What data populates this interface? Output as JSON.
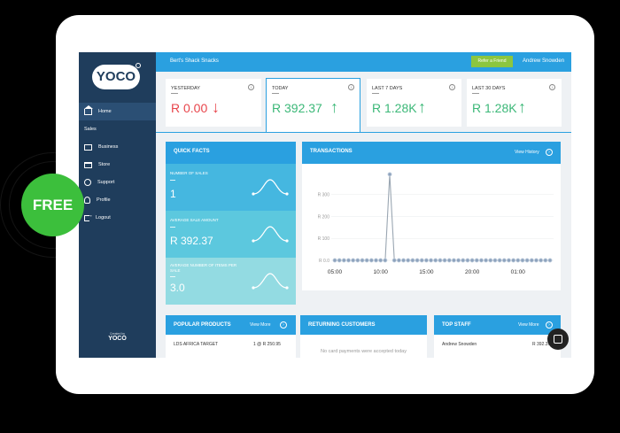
{
  "brand": {
    "logo_text": "YOCO",
    "footer_small": "Created by",
    "footer_brand": "YOCO"
  },
  "badge": {
    "label": "FREE"
  },
  "nav": [
    {
      "label": "Home",
      "icon": "home-icon",
      "active": true
    },
    {
      "label": "Sales",
      "icon": "card-icon"
    },
    {
      "label": "Business",
      "icon": "briefcase-icon"
    },
    {
      "label": "Store",
      "icon": "store-icon"
    },
    {
      "label": "Support",
      "icon": "support-icon"
    },
    {
      "label": "Profile",
      "icon": "profile-icon"
    },
    {
      "label": "Logout",
      "icon": "logout-icon"
    }
  ],
  "topbar": {
    "shop_name": "Bert's Shack Snacks",
    "refer_label": "Refer a Friend",
    "user_name": "Andrew Snowden"
  },
  "stats": [
    {
      "label": "YESTERDAY",
      "value": "R 0.00",
      "trend": "down",
      "arrow": "↓",
      "color": "#e8454b"
    },
    {
      "label": "TODAY",
      "value": "R 392.37",
      "trend": "up",
      "arrow": "↑",
      "color": "#3cb878"
    },
    {
      "label": "LAST 7 DAYS",
      "value": "R 1.28K",
      "trend": "up",
      "arrow": "↑",
      "color": "#3cb878"
    },
    {
      "label": "LAST 30 DAYS",
      "value": "R 1.28K",
      "trend": "up",
      "arrow": "↑",
      "color": "#3cb878"
    }
  ],
  "quick_facts": {
    "title": "QUICK FACTS",
    "items": [
      {
        "label": "NUMBER OF SALES",
        "value": "1",
        "bg": "#45b7e0"
      },
      {
        "label": "AVERAGE SALE AMOUNT",
        "value": "R 392.37",
        "bg": "#5cc8de"
      },
      {
        "label": "AVERAGE NUMBER OF ITEMS PER SALE",
        "value": "3.0",
        "bg": "#93dbe2"
      }
    ]
  },
  "transactions": {
    "title": "TRANSACTIONS",
    "view_label": "View History"
  },
  "chart_data": {
    "type": "line",
    "x": [
      "05:00",
      "05:30",
      "06:00",
      "06:30",
      "07:00",
      "07:30",
      "08:00",
      "08:30",
      "09:00",
      "09:30",
      "10:00",
      "10:30",
      "11:00",
      "11:30",
      "12:00",
      "12:30",
      "13:00",
      "13:30",
      "14:00",
      "14:30",
      "15:00",
      "15:30",
      "16:00",
      "16:30",
      "17:00",
      "17:30",
      "18:00",
      "18:30",
      "19:00",
      "19:30",
      "20:00",
      "20:30",
      "21:00",
      "21:30",
      "22:00",
      "22:30",
      "23:00",
      "23:30",
      "00:00",
      "00:30",
      "01:00",
      "01:30",
      "02:00",
      "02:30",
      "03:00",
      "03:30",
      "04:00",
      "04:30"
    ],
    "series": [
      {
        "values": [
          0,
          0,
          0,
          0,
          0,
          0,
          0,
          0,
          0,
          0,
          0,
          0,
          392.37,
          0,
          0,
          0,
          0,
          0,
          0,
          0,
          0,
          0,
          0,
          0,
          0,
          0,
          0,
          0,
          0,
          0,
          0,
          0,
          0,
          0,
          0,
          0,
          0,
          0,
          0,
          0,
          0,
          0,
          0,
          0,
          0,
          0,
          0,
          0
        ]
      }
    ],
    "xticks": [
      "05:00",
      "10:00",
      "15:00",
      "20:00",
      "01:00"
    ],
    "yticks": [
      "R 0.0",
      "R 100",
      "R 200",
      "R 300"
    ],
    "ylim": [
      0,
      400
    ],
    "grid": true,
    "line_color": "#9aa6b2",
    "point_color": "#8ea3bd"
  },
  "bottom": {
    "popular": {
      "title": "POPULAR PRODUCTS",
      "more": "View More",
      "row_name": "LDS AFRICA TARGET",
      "row_value": "1 @ R 250.95"
    },
    "returning": {
      "title": "RETURNING CUSTOMERS",
      "message": "No card payments were accepted today"
    },
    "staff": {
      "title": "TOP STAFF",
      "more": "View More",
      "row_name": "Andrew Snowden",
      "row_value": "R 392.37"
    }
  },
  "colors": {
    "accent": "#2aa0e0",
    "sidebar": "#1f3d5c",
    "positive": "#3cb878",
    "negative": "#e8454b",
    "badge": "#3cbf3c"
  }
}
